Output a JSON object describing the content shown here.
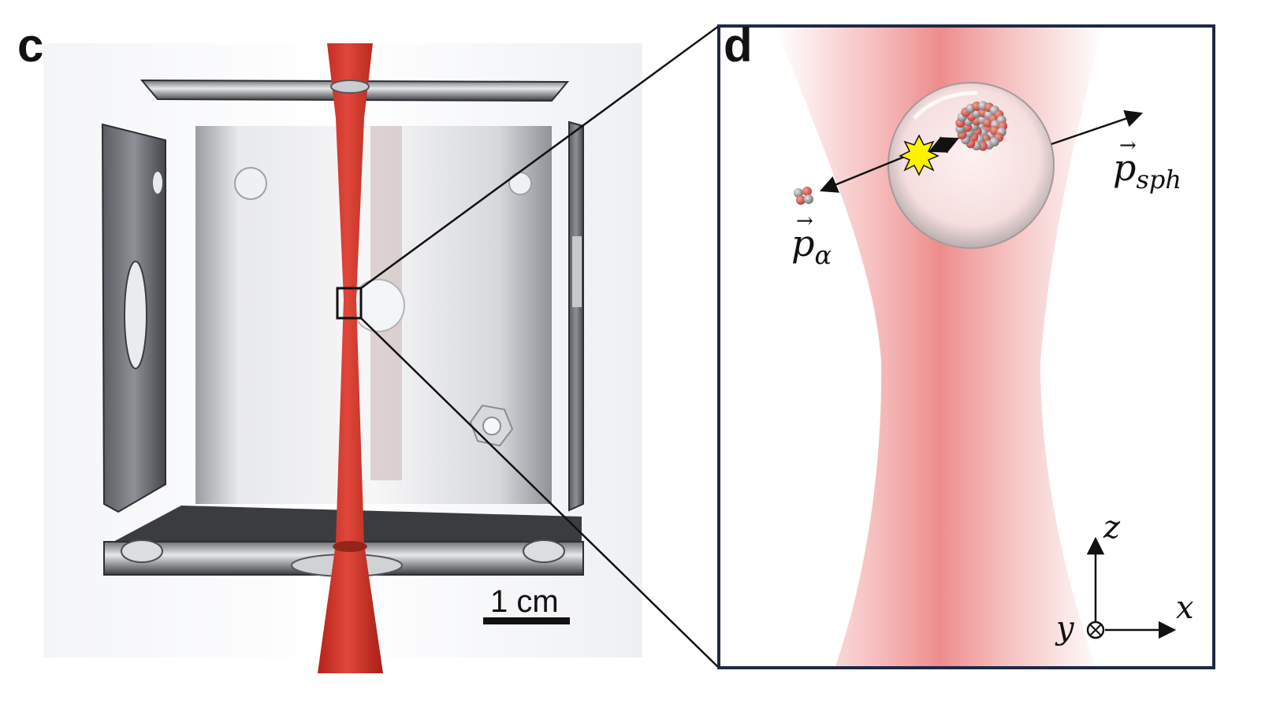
{
  "panels": {
    "c": {
      "letter": "c",
      "scale_bar_label": "1 cm"
    },
    "d": {
      "letter": "d",
      "momentum_alpha": {
        "base": "p",
        "subscript": "α"
      },
      "momentum_sphere": {
        "base": "p",
        "subscript": "sph"
      },
      "axes": {
        "z": "z",
        "x": "x",
        "y": "y"
      }
    }
  },
  "colors": {
    "beam_red": "#d9382a",
    "beam_glow": "#ee8a8a",
    "frame_border": "#1f2a44",
    "flash": "#fff200",
    "metal": "#c9ccd0"
  },
  "icons": {
    "vector_arrow": "→",
    "into_page": "otimes"
  }
}
